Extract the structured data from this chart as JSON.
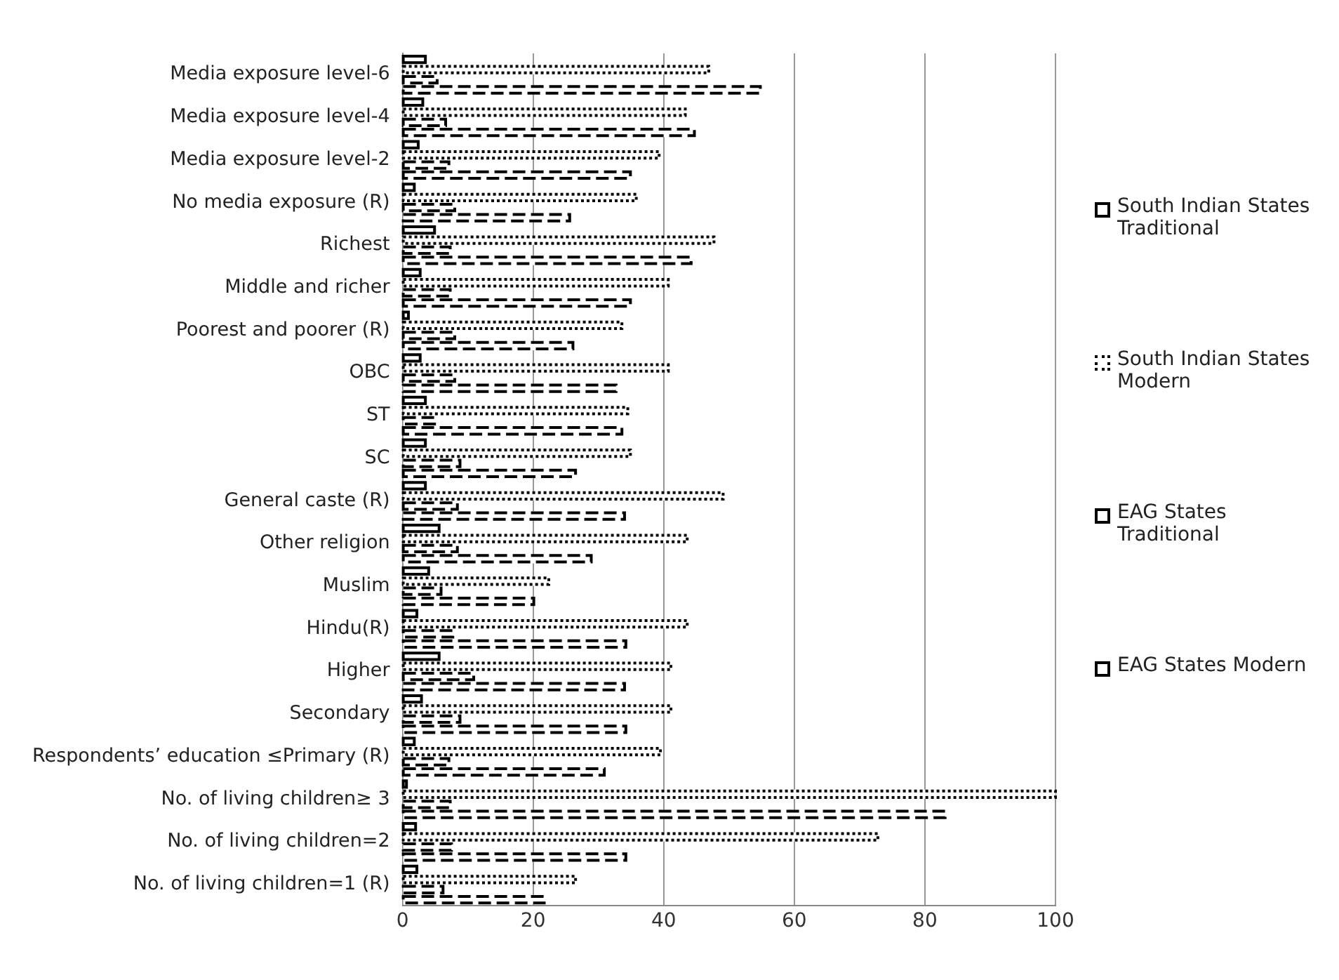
{
  "chart_data": {
    "type": "bar",
    "orientation": "horizontal",
    "categories": [
      "Media exposure level-6",
      "Media exposure level-4",
      "Media exposure level-2",
      "No media exposure (R)",
      "Richest",
      "Middle and richer",
      "Poorest and poorer (R)",
      "OBC",
      "ST",
      "SC",
      "General caste (R)",
      "Other religion",
      "Muslim",
      "Hindu(R)",
      "Higher",
      "Secondary",
      "Respondents’ education ≤Primary (R)",
      "No. of living children≥ 3",
      "No. of living children=2",
      "No. of living children=1 (R)"
    ],
    "series": [
      {
        "name": "South Indian States Traditional",
        "color": "#000000",
        "line_style": "solid",
        "values": [
          3.5,
          3.1,
          2.4,
          1.8,
          4.9,
          2.7,
          0.9,
          2.7,
          3.5,
          3.5,
          3.5,
          5.6,
          4.0,
          2.2,
          5.6,
          2.9,
          1.8,
          0.6,
          2.0,
          2.2
        ]
      },
      {
        "name": "South Indian States Modern",
        "color": "#000000",
        "line_style": "dotted",
        "values": [
          46.9,
          43.3,
          39.3,
          35.8,
          47.7,
          40.7,
          33.6,
          40.7,
          34.5,
          34.9,
          49.1,
          43.6,
          22.4,
          43.6,
          41.1,
          41.1,
          39.5,
          100,
          72.8,
          26.5
        ]
      },
      {
        "name": "EAG States Traditional",
        "color": "#000000",
        "line_style": "dashed",
        "values": [
          5.3,
          6.6,
          7.1,
          8.0,
          7.3,
          7.3,
          8.0,
          8.0,
          4.9,
          8.8,
          8.4,
          8.4,
          5.9,
          7.7,
          10.9,
          8.8,
          7.1,
          7.3,
          7.5,
          6.2
        ]
      },
      {
        "name": "EAG States Modern",
        "color": "#000000",
        "line_style": "dashed",
        "values": [
          54.8,
          44.7,
          34.9,
          25.6,
          44.2,
          34.9,
          26.1,
          32.7,
          33.6,
          26.5,
          34.0,
          28.9,
          20.1,
          34.2,
          34.0,
          34.2,
          30.9,
          83.1,
          34.2,
          21.7
        ]
      }
    ],
    "xlim": [
      0,
      100
    ],
    "xticks": [
      0,
      20,
      40,
      60,
      80,
      100
    ],
    "grid": "x",
    "legend": "right"
  }
}
